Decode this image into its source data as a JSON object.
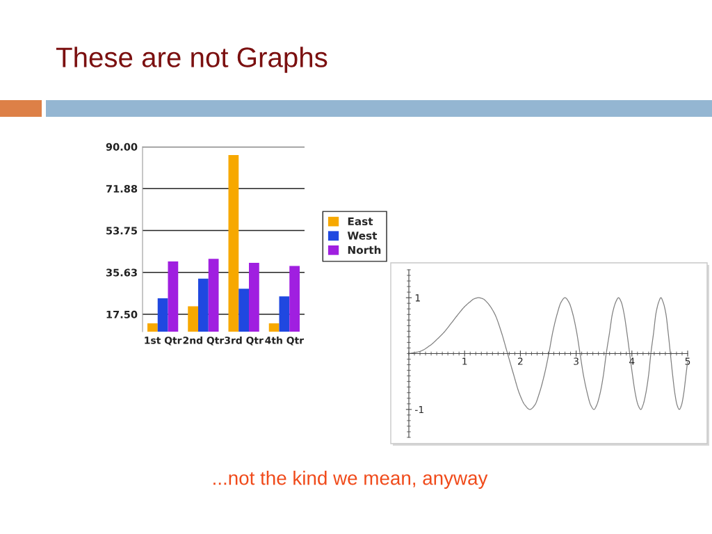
{
  "chart_data": [
    {
      "type": "bar",
      "title": "These are not Graphs",
      "annotations": [
        "...not the kind we mean, anyway"
      ],
      "categories": [
        "1st Qtr",
        "2nd Qtr",
        "3rd Qtr",
        "4th Qtr"
      ],
      "series": [
        {
          "name": "East",
          "color": "#f7a800",
          "values": [
            13.6,
            21.0,
            86.4,
            13.6
          ]
        },
        {
          "name": "West",
          "color": "#1f48e0",
          "values": [
            24.4,
            32.9,
            28.6,
            25.3
          ]
        },
        {
          "name": "North",
          "color": "#a01fe0",
          "values": [
            40.4,
            41.5,
            39.8,
            38.4
          ]
        }
      ],
      "ylim": [
        10,
        90
      ],
      "yticks": [
        {
          "value": 17.5,
          "label": "17.50"
        },
        35.63,
        53.75,
        71.88,
        {
          "value": 90,
          "label": "90.00"
        }
      ],
      "grid": "y",
      "legend": "right"
    },
    {
      "type": "line",
      "x": [
        0,
        0.2,
        0.4,
        0.5,
        0.63,
        0.75,
        0.89,
        1.0,
        1.09,
        1.17,
        1.25,
        1.33,
        1.4,
        1.54,
        1.66,
        1.77,
        1.88,
        1.98,
        2.08,
        2.17,
        2.26,
        2.34,
        2.43,
        2.51,
        2.58,
        2.66,
        2.73,
        2.8,
        2.87,
        2.94,
        3.01,
        3.07,
        3.13,
        3.2,
        3.26,
        3.32,
        3.37,
        3.43,
        3.49,
        3.54,
        3.6,
        3.65,
        3.71,
        3.76,
        3.81,
        3.86,
        3.91,
        3.96,
        4.01,
        4.06,
        4.11,
        4.16,
        4.2,
        4.25,
        4.3,
        4.34,
        4.39,
        4.43,
        4.48,
        4.52,
        4.56,
        4.61,
        4.65,
        4.69,
        4.73,
        4.77,
        4.81,
        4.85,
        4.89,
        4.93,
        4.97,
        5.0
      ],
      "series": [
        {
          "color": "#808080",
          "values": [
            0,
            0.04,
            0.16,
            0.25,
            0.38,
            0.53,
            0.71,
            0.84,
            0.92,
            0.98,
            1,
            0.98,
            0.92,
            0.71,
            0.38,
            0,
            -0.38,
            -0.71,
            -0.92,
            -1,
            -0.92,
            -0.71,
            -0.38,
            0,
            0.38,
            0.71,
            0.92,
            1,
            0.92,
            0.71,
            0.38,
            0,
            -0.38,
            -0.71,
            -0.92,
            -1,
            -0.92,
            -0.71,
            -0.38,
            0,
            0.38,
            0.71,
            0.92,
            1,
            0.92,
            0.71,
            0.38,
            0,
            -0.38,
            -0.71,
            -0.92,
            -1,
            -0.92,
            -0.71,
            -0.38,
            0,
            0.38,
            0.71,
            0.92,
            1,
            0.92,
            0.71,
            0.38,
            0,
            -0.38,
            -0.71,
            -0.92,
            -1,
            -0.92,
            -0.71,
            -0.38,
            -0.13
          ]
        }
      ],
      "xlim": [
        0,
        5
      ],
      "ylim": [
        -1.5,
        1.5
      ],
      "xticks": [
        {
          "value": 0,
          "label": null
        },
        {
          "value": 0.1,
          "label": null
        },
        {
          "value": 0.2,
          "label": null
        },
        {
          "value": 0.3,
          "label": null
        },
        {
          "value": 0.4,
          "label": null
        },
        {
          "value": 0.5,
          "label": null
        },
        {
          "value": 0.6,
          "label": null
        },
        {
          "value": 0.7,
          "label": null
        },
        {
          "value": 0.8,
          "label": null
        },
        {
          "value": 0.9,
          "label": null
        },
        1,
        {
          "value": 1.1,
          "label": null
        },
        {
          "value": 1.2,
          "label": null
        },
        {
          "value": 1.3,
          "label": null
        },
        {
          "value": 1.4,
          "label": null
        },
        {
          "value": 1.5,
          "label": null
        },
        {
          "value": 1.6,
          "label": null
        },
        {
          "value": 1.7,
          "label": null
        },
        {
          "value": 1.8,
          "label": null
        },
        {
          "value": 1.9,
          "label": null
        },
        2,
        {
          "value": 2.1,
          "label": null
        },
        {
          "value": 2.2,
          "label": null
        },
        {
          "value": 2.3,
          "label": null
        },
        {
          "value": 2.4,
          "label": null
        },
        {
          "value": 2.5,
          "label": null
        },
        {
          "value": 2.6,
          "label": null
        },
        {
          "value": 2.7,
          "label": null
        },
        {
          "value": 2.8,
          "label": null
        },
        {
          "value": 2.9,
          "label": null
        },
        3,
        {
          "value": 3.1,
          "label": null
        },
        {
          "value": 3.2,
          "label": null
        },
        {
          "value": 3.3,
          "label": null
        },
        {
          "value": 3.4,
          "label": null
        },
        {
          "value": 3.5,
          "label": null
        },
        {
          "value": 3.6,
          "label": null
        },
        {
          "value": 3.7,
          "label": null
        },
        {
          "value": 3.8,
          "label": null
        },
        {
          "value": 3.9,
          "label": null
        },
        4,
        {
          "value": 4.1,
          "label": null
        },
        {
          "value": 4.2,
          "label": null
        },
        {
          "value": 4.3,
          "label": null
        },
        {
          "value": 4.4,
          "label": null
        },
        {
          "value": 4.5,
          "label": null
        },
        {
          "value": 4.6,
          "label": null
        },
        {
          "value": 4.7,
          "label": null
        },
        {
          "value": 4.8,
          "label": null
        },
        {
          "value": 4.9,
          "label": null
        },
        5
      ],
      "yticks": [
        {
          "value": -1.5,
          "label": null
        },
        {
          "value": -1.4,
          "label": null
        },
        {
          "value": -1.3,
          "label": null
        },
        {
          "value": -1.2,
          "label": null
        },
        {
          "value": -1.1,
          "label": null
        },
        -1,
        {
          "value": -0.9,
          "label": null
        },
        {
          "value": -0.8,
          "label": null
        },
        {
          "value": -0.7,
          "label": null
        },
        {
          "value": -0.6,
          "label": null
        },
        {
          "value": -0.5,
          "label": null
        },
        {
          "value": -0.4,
          "label": null
        },
        {
          "value": -0.3,
          "label": null
        },
        {
          "value": -0.2,
          "label": null
        },
        {
          "value": -0.1,
          "label": null
        },
        {
          "value": 0,
          "label": null
        },
        {
          "value": 0.1,
          "label": null
        },
        {
          "value": 0.2,
          "label": null
        },
        {
          "value": 0.3,
          "label": null
        },
        {
          "value": 0.4,
          "label": null
        },
        {
          "value": 0.5,
          "label": null
        },
        {
          "value": 0.6,
          "label": null
        },
        {
          "value": 0.7,
          "label": null
        },
        {
          "value": 0.8,
          "label": null
        },
        {
          "value": 0.9,
          "label": null
        },
        1,
        {
          "value": 1.1,
          "label": null
        },
        {
          "value": 1.2,
          "label": null
        },
        {
          "value": 1.3,
          "label": null
        },
        {
          "value": 1.4,
          "label": null
        },
        {
          "value": 1.5,
          "label": null
        }
      ]
    }
  ]
}
